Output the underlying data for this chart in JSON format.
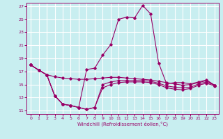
{
  "xlabel": "Windchill (Refroidissement éolien,°C)",
  "background_color": "#c8eef0",
  "grid_color": "#ffffff",
  "line_color": "#990066",
  "xlim": [
    -0.5,
    23.5
  ],
  "ylim": [
    10.5,
    27.5
  ],
  "xticks": [
    0,
    1,
    2,
    3,
    4,
    5,
    6,
    7,
    8,
    9,
    10,
    11,
    12,
    13,
    14,
    15,
    16,
    17,
    18,
    19,
    20,
    21,
    22,
    23
  ],
  "yticks": [
    11,
    13,
    15,
    17,
    19,
    21,
    23,
    25,
    27
  ],
  "line1": [
    18.0,
    17.2,
    16.5,
    16.2,
    16.0,
    15.9,
    15.8,
    15.8,
    15.9,
    16.0,
    16.1,
    16.1,
    16.0,
    15.9,
    15.8,
    15.7,
    15.5,
    15.3,
    15.1,
    14.9,
    15.0,
    15.3,
    15.6,
    14.9
  ],
  "line2": [
    18.0,
    17.2,
    16.5,
    13.3,
    12.0,
    11.8,
    11.5,
    11.2,
    11.5,
    14.5,
    15.0,
    15.3,
    15.4,
    15.4,
    15.4,
    15.3,
    15.0,
    14.5,
    14.3,
    14.2,
    14.4,
    14.9,
    15.2,
    14.8
  ],
  "line3": [
    18.0,
    17.2,
    16.5,
    13.3,
    12.0,
    11.8,
    11.5,
    11.2,
    11.5,
    15.0,
    15.4,
    15.6,
    15.6,
    15.6,
    15.6,
    15.5,
    15.2,
    14.8,
    14.6,
    14.5,
    14.6,
    15.1,
    15.4,
    14.9
  ],
  "line4": [
    18.0,
    17.2,
    16.5,
    13.3,
    12.0,
    11.8,
    11.5,
    17.3,
    17.5,
    19.5,
    21.1,
    25.0,
    25.3,
    25.2,
    27.1,
    25.8,
    18.3,
    15.1,
    15.3,
    15.3,
    15.1,
    15.4,
    15.7,
    14.9
  ]
}
